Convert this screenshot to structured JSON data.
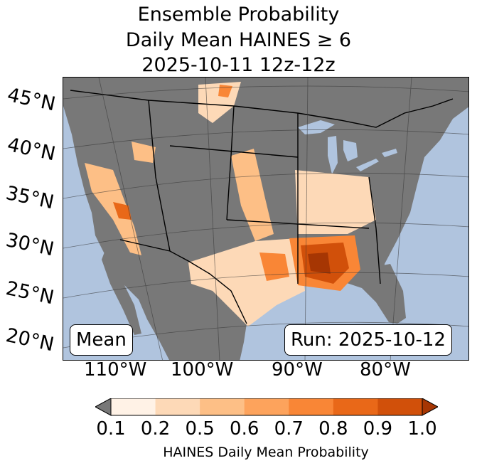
{
  "title": {
    "line1": "Ensemble Probability",
    "line2": "Daily Mean HAINES ≥ 6",
    "line3": "2025-10-11 12z-12z"
  },
  "map": {
    "lat_labels": [
      "45°N",
      "40°N",
      "35°N",
      "30°N",
      "25°N",
      "20°N"
    ],
    "lon_labels": [
      "110°W",
      "100°W",
      "90°W",
      "80°W"
    ],
    "mean_label": "Mean",
    "run_label": "Run: 2025-10-12",
    "colors": {
      "ocean": "#b0c4de",
      "land": "#787878"
    }
  },
  "colorbar": {
    "ticks": [
      "0.1",
      "0.2",
      "0.5",
      "0.6",
      "0.7",
      "0.8",
      "0.9",
      "1.0"
    ],
    "colors": [
      "#fff2e6",
      "#fdd9b7",
      "#fdbf86",
      "#fda35c",
      "#f98636",
      "#e96818",
      "#d1500a"
    ],
    "under_color": "#787878",
    "over_color": "#a63603",
    "label": "HAINES Daily Mean Probability"
  }
}
